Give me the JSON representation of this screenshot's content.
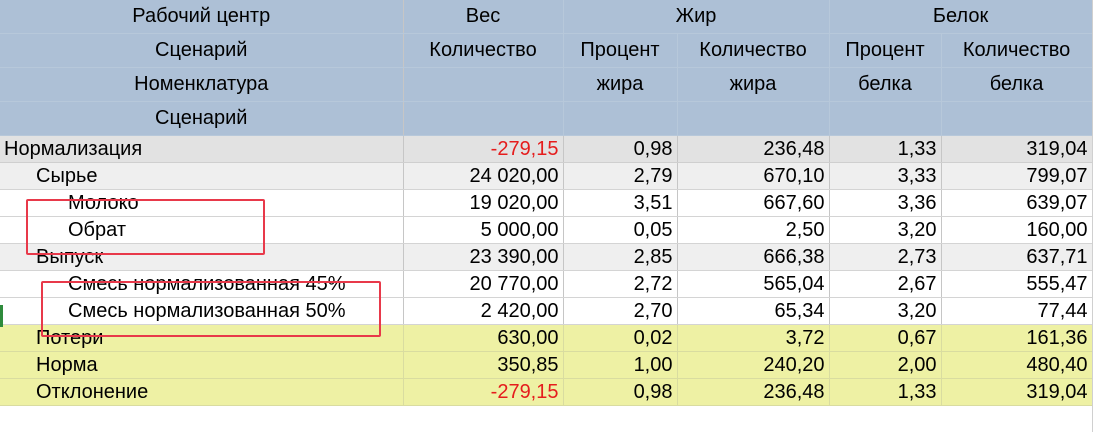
{
  "header": {
    "dims": [
      "Рабочий центр",
      "Сценарий",
      "Номенклатура",
      "Сценарий"
    ],
    "ves": "Вес",
    "ves_qty": "Количество",
    "zhir": "Жир",
    "zhir_pct_1": "Процент",
    "zhir_pct_2": "жира",
    "zhir_qty_1": "Количество",
    "zhir_qty_2": "жира",
    "belok": "Белок",
    "belok_pct_1": "Процент",
    "belok_pct_2": "белка",
    "belok_qty_1": "Количество",
    "belok_qty_2": "белка"
  },
  "rows": [
    {
      "name": "Нормализация",
      "qty": "-279,15",
      "fat_pct": "0,98",
      "fat_qty": "236,48",
      "prot_pct": "1,33",
      "prot_qty": "319,04"
    },
    {
      "name": "Сырье",
      "qty": "24 020,00",
      "fat_pct": "2,79",
      "fat_qty": "670,10",
      "prot_pct": "3,33",
      "prot_qty": "799,07"
    },
    {
      "name": "Молоко",
      "qty": "19 020,00",
      "fat_pct": "3,51",
      "fat_qty": "667,60",
      "prot_pct": "3,36",
      "prot_qty": "639,07"
    },
    {
      "name": "Обрат",
      "qty": "5 000,00",
      "fat_pct": "0,05",
      "fat_qty": "2,50",
      "prot_pct": "3,20",
      "prot_qty": "160,00"
    },
    {
      "name": "Выпуск",
      "qty": "23 390,00",
      "fat_pct": "2,85",
      "fat_qty": "666,38",
      "prot_pct": "2,73",
      "prot_qty": "637,71"
    },
    {
      "name": "Смесь нормализованная 45%",
      "qty": "20 770,00",
      "fat_pct": "2,72",
      "fat_qty": "565,04",
      "prot_pct": "2,67",
      "prot_qty": "555,47"
    },
    {
      "name": "Смесь нормализованная 50%",
      "qty": "2 420,00",
      "fat_pct": "2,70",
      "fat_qty": "65,34",
      "prot_pct": "3,20",
      "prot_qty": "77,44"
    },
    {
      "name": "Потери",
      "qty": "630,00",
      "fat_pct": "0,02",
      "fat_qty": "3,72",
      "prot_pct": "0,67",
      "prot_qty": "161,36"
    },
    {
      "name": "Норма",
      "qty": "350,85",
      "fat_pct": "1,00",
      "fat_qty": "240,20",
      "prot_pct": "2,00",
      "prot_qty": "480,40"
    },
    {
      "name": "Отклонение",
      "qty": "-279,15",
      "fat_pct": "0,98",
      "fat_qty": "236,48",
      "prot_pct": "1,33",
      "prot_qty": "319,04"
    }
  ],
  "colors": {
    "header_bg": "#adc0d6",
    "total_row_bg": "#e2e2e2",
    "summary_bg": "#eef1a4",
    "negative": "#e51d1d",
    "highlight_box": "#e8394a"
  }
}
